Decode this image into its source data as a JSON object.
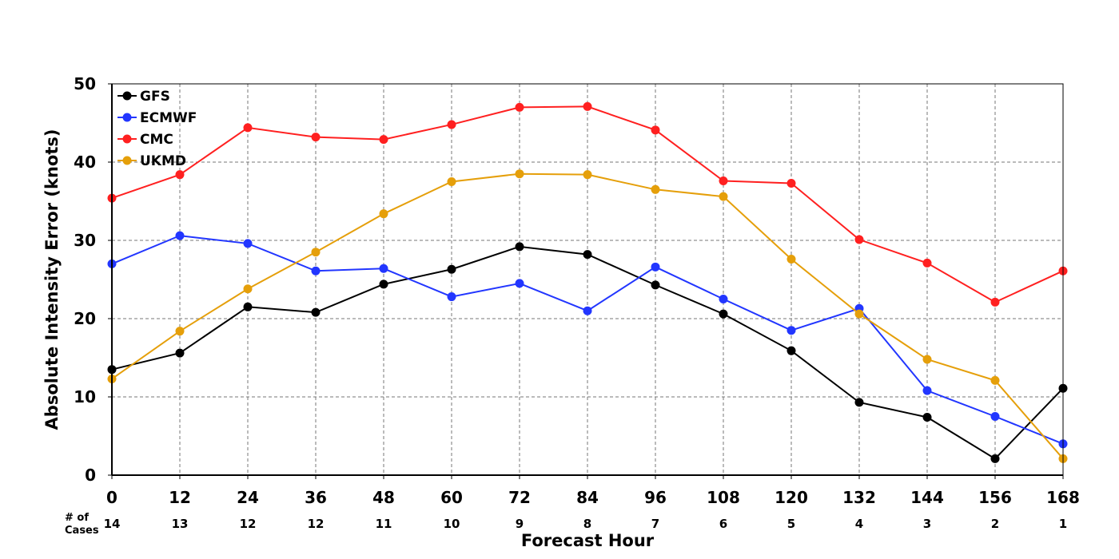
{
  "chart_data": {
    "type": "line",
    "title": "",
    "xlabel": "Forecast Hour",
    "ylabel": "Absolute Intensity Error (knots)",
    "x": [
      0,
      12,
      24,
      36,
      48,
      60,
      72,
      84,
      96,
      108,
      120,
      132,
      144,
      156,
      168
    ],
    "xlim": [
      0,
      168
    ],
    "ylim": [
      0,
      50
    ],
    "yticks": [
      0,
      10,
      20,
      30,
      40,
      50
    ],
    "grid": true,
    "legend_position": "top-left",
    "cases_label": [
      "# of",
      "Cases"
    ],
    "cases": [
      14,
      13,
      12,
      12,
      11,
      10,
      9,
      8,
      7,
      6,
      5,
      4,
      3,
      2,
      1
    ],
    "series": [
      {
        "name": "GFS",
        "color": "#000000",
        "values": [
          13.5,
          15.6,
          21.5,
          20.8,
          24.4,
          26.3,
          29.2,
          28.2,
          24.3,
          20.6,
          15.9,
          9.3,
          7.4,
          2.1,
          11.1
        ]
      },
      {
        "name": "ECMWF",
        "color": "#2236ff",
        "values": [
          27.0,
          30.6,
          29.6,
          26.1,
          26.4,
          22.8,
          24.5,
          21.0,
          26.6,
          22.5,
          18.5,
          21.3,
          10.8,
          7.5,
          4.0
        ]
      },
      {
        "name": "CMC",
        "color": "#ff2020",
        "values": [
          35.4,
          38.4,
          44.4,
          43.2,
          42.9,
          44.8,
          47.0,
          47.1,
          44.1,
          37.6,
          37.3,
          30.1,
          27.1,
          22.1,
          26.1
        ]
      },
      {
        "name": "UKMD",
        "color": "#e59f0a",
        "values": [
          12.3,
          18.4,
          23.8,
          28.5,
          33.4,
          37.5,
          38.5,
          38.4,
          36.5,
          35.6,
          27.6,
          20.6,
          14.8,
          12.1,
          2.1
        ]
      }
    ]
  }
}
